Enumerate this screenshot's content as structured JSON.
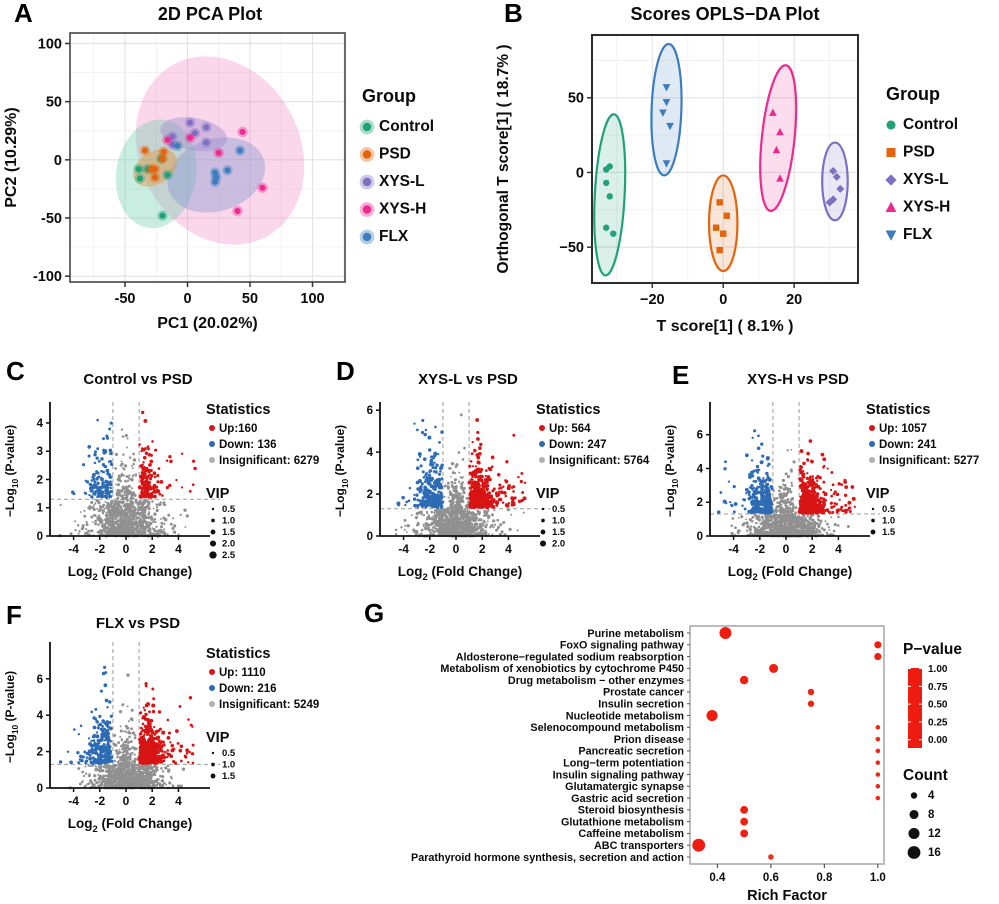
{
  "colors": {
    "groups": {
      "Control": "#1fa179",
      "PSD": "#e2650e",
      "XYS-L": "#7e6fc3",
      "XYS-H": "#ec2a90",
      "FLX": "#3d7dbf"
    },
    "up": "#d81414",
    "down": "#2d6cb5",
    "insignificant": "#909090",
    "legend_insig": "#b0b0b0",
    "axis": "#1a1a1a",
    "grid_major": "#e2e2e2",
    "grid_minor": "#f1f1f1",
    "dashed": "#9a9a9a",
    "panel_a_border": "#454545",
    "panel_b_border": "#2b2b2b",
    "panel_g_border": "#a6a6a6",
    "pvalue_gradient": [
      [
        0,
        "#ee1c10"
      ],
      [
        0.25,
        "#fb5d28"
      ],
      [
        0.4,
        "#f0b63e"
      ],
      [
        0.5,
        "#52d83e"
      ],
      [
        0.63,
        "#8cec7c"
      ],
      [
        0.75,
        "#45e5f2"
      ],
      [
        0.87,
        "#86b9f2"
      ],
      [
        1,
        "#a95ae4"
      ]
    ]
  },
  "chart_data": [
    {
      "panel": "A",
      "type": "scatter",
      "title": "2D PCA Plot",
      "xlabel": "PC1 (20.02%)",
      "ylabel": "PC2 (10.29%)",
      "xlim": [
        -94,
        126
      ],
      "ylim": [
        -105,
        109
      ],
      "xticks": [
        -50,
        0,
        50,
        100
      ],
      "xtick_labels": [
        "-50",
        "0",
        "50",
        "100"
      ],
      "yticks": [
        -100,
        -50,
        0,
        50,
        100
      ],
      "ytick_labels": [
        "-100",
        "-50",
        "0",
        "50",
        "100"
      ],
      "legend_title": "Group",
      "marker_style": "halo",
      "series": [
        {
          "name": "Control",
          "marker": "circle",
          "points": [
            [
              -39,
              -8
            ],
            [
              -32,
              -8
            ],
            [
              -38,
              -16
            ],
            [
              -21,
              1
            ],
            [
              -16,
              -13
            ],
            [
              -20,
              -48
            ]
          ]
        },
        {
          "name": "PSD",
          "marker": "circle",
          "points": [
            [
              -34,
              8
            ],
            [
              -19,
              7
            ],
            [
              -20,
              1
            ],
            [
              -29,
              -8
            ],
            [
              -26,
              -8
            ],
            [
              -26,
              -15
            ]
          ]
        },
        {
          "name": "XYS-L",
          "marker": "circle",
          "points": [
            [
              2,
              32
            ],
            [
              15,
              28
            ],
            [
              6,
              23
            ],
            [
              -12,
              20
            ],
            [
              -12,
              13
            ],
            [
              15,
              15
            ]
          ]
        },
        {
          "name": "XYS-H",
          "marker": "circle",
          "points": [
            [
              2,
              19
            ],
            [
              44,
              24
            ],
            [
              25,
              6
            ],
            [
              60,
              -24
            ],
            [
              40,
              -44
            ],
            [
              -16,
              17
            ]
          ]
        },
        {
          "name": "FLX",
          "marker": "circle",
          "points": [
            [
              -8,
              12
            ],
            [
              42,
              8
            ],
            [
              32,
              -9
            ],
            [
              22,
              -11
            ],
            [
              23,
              -15
            ],
            [
              22,
              -19
            ]
          ]
        }
      ],
      "ellipses": [
        {
          "group": "XYS-H",
          "cx": 26,
          "cy": 8,
          "rx": 64,
          "ry": 84,
          "rot": -28,
          "fill": "#f26db6",
          "opacity": 0.27
        },
        {
          "group": "Control",
          "cx": -25,
          "cy": -12,
          "rx": 32,
          "ry": 47,
          "rot": 9,
          "fill": "#5fc9a5",
          "opacity": 0.33
        },
        {
          "group": "FLX",
          "cx": 23,
          "cy": -13,
          "rx": 40,
          "ry": 31,
          "rot": -18,
          "fill": "#7e93cf",
          "opacity": 0.38
        },
        {
          "group": "XYS-L",
          "cx": 5,
          "cy": 22,
          "rx": 27,
          "ry": 14,
          "rot": 10,
          "fill": "#9a8bd0",
          "opacity": 0.42
        },
        {
          "group": "PSD",
          "cx": -26,
          "cy": -7,
          "rx": 19,
          "ry": 14,
          "rot": -32,
          "fill": "#e09a3c",
          "opacity": 0.45
        }
      ]
    },
    {
      "panel": "B",
      "type": "scatter",
      "title": "Scores OPLS−DA Plot",
      "xlabel": "T score[1] ( 8.1% )",
      "ylabel": "Orthogonal T score[1] ( 18.7% )",
      "xlim": [
        -37,
        38
      ],
      "ylim": [
        -74,
        92
      ],
      "xticks": [
        -20,
        0,
        20
      ],
      "xtick_labels": [
        "−20",
        "0",
        "20"
      ],
      "yticks": [
        -50,
        0,
        50
      ],
      "ytick_labels": [
        "−50",
        "0",
        "50"
      ],
      "legend_title": "Group",
      "marker_style": "shape",
      "series": [
        {
          "name": "Control",
          "marker": "circle",
          "points": [
            [
              -33,
              2
            ],
            [
              -32,
              4
            ],
            [
              -33,
              -7
            ],
            [
              -32,
              -16
            ],
            [
              -33,
              -37
            ],
            [
              -31,
              -41
            ]
          ]
        },
        {
          "name": "PSD",
          "marker": "square",
          "points": [
            [
              -1,
              -20
            ],
            [
              1,
              -29
            ],
            [
              -2,
              -37
            ],
            [
              0,
              -41
            ],
            [
              -1,
              -52
            ]
          ]
        },
        {
          "name": "XYS-L",
          "marker": "diamond",
          "points": [
            [
              31,
              1
            ],
            [
              32,
              -3
            ],
            [
              33,
              -11
            ],
            [
              31,
              -18
            ],
            [
              30,
              -20
            ]
          ]
        },
        {
          "name": "XYS-H",
          "marker": "triangle-up",
          "points": [
            [
              14,
              40
            ],
            [
              16,
              27
            ],
            [
              15,
              15
            ],
            [
              16,
              -4
            ]
          ]
        },
        {
          "name": "FLX",
          "marker": "triangle-down",
          "points": [
            [
              -16,
              57
            ],
            [
              -16,
              47
            ],
            [
              -17,
              40
            ],
            [
              -15,
              31
            ],
            [
              -16,
              6
            ]
          ]
        }
      ],
      "ellipses": [
        {
          "group": "Control",
          "cx": -32,
          "cy": -15,
          "rx": 4.2,
          "ry": 54,
          "rot": 3
        },
        {
          "group": "FLX",
          "cx": -16,
          "cy": 42,
          "rx": 4.2,
          "ry": 44,
          "rot": 2
        },
        {
          "group": "PSD",
          "cx": 0,
          "cy": -34,
          "rx": 4,
          "ry": 32,
          "rot": 0
        },
        {
          "group": "XYS-H",
          "cx": 15.5,
          "cy": 23,
          "rx": 4.6,
          "ry": 49,
          "rot": 6
        },
        {
          "group": "XYS-L",
          "cx": 31.5,
          "cy": -6,
          "rx": 3.6,
          "ry": 26,
          "rot": 0
        }
      ]
    },
    {
      "panel": "C",
      "type": "volcano",
      "title": "Control vs PSD",
      "xlabel": "Log_{2} (Fold Change)",
      "ylabel": "−Log_{10} (P-value)",
      "xlim": [
        -5.8,
        5.8
      ],
      "xticks": [
        -4,
        -2,
        0,
        2,
        4
      ],
      "xtick_labels": [
        "-4",
        "-2",
        "0",
        "2",
        "4"
      ],
      "ylim": [
        0,
        4.6
      ],
      "yticks": [
        0,
        1,
        2,
        3,
        4
      ],
      "ytick_labels": [
        "0",
        "1",
        "2",
        "3",
        "4"
      ],
      "thresholds": {
        "x": 1,
        "y": 1.3
      },
      "seed": 7,
      "stats_title": "Statistics",
      "stats": [
        {
          "key": "up",
          "label": "Up:160",
          "count": 160
        },
        {
          "key": "down",
          "label": "Down: 136",
          "count": 136
        },
        {
          "key": "insignificant",
          "label": "Insignificant: 6279",
          "count": 6279
        }
      ],
      "vip_title": "VIP",
      "vip": [
        "0.5",
        "1.0",
        "1.5",
        "2.0",
        "2.5"
      ]
    },
    {
      "panel": "D",
      "type": "volcano",
      "title": "XYS-L vs PSD",
      "xlabel": "Log_{2} (Fold Change)",
      "ylabel": "−Log_{10} (P-value)",
      "xlim": [
        -5.8,
        5.8
      ],
      "xticks": [
        -4,
        -2,
        0,
        2,
        4
      ],
      "xtick_labels": [
        "-4",
        "-2",
        "0",
        "2",
        "4"
      ],
      "ylim": [
        0,
        6.2
      ],
      "yticks": [
        0,
        2,
        4,
        6
      ],
      "ytick_labels": [
        "0",
        "2",
        "4",
        "6"
      ],
      "thresholds": {
        "x": 1,
        "y": 1.3
      },
      "seed": 11,
      "stats_title": "Statistics",
      "stats": [
        {
          "key": "up",
          "label": "Up: 564",
          "count": 564
        },
        {
          "key": "down",
          "label": "Down: 247",
          "count": 247
        },
        {
          "key": "insignificant",
          "label": "Insignificant: 5764",
          "count": 5764
        }
      ],
      "vip_title": "VIP",
      "vip": [
        "0.5",
        "1.0",
        "1.5",
        "2.0"
      ]
    },
    {
      "panel": "E",
      "type": "volcano",
      "title": "XYS-H vs PSD",
      "xlabel": "Log_{2} (Fold Change)",
      "ylabel": "−Log_{10} (P-value)",
      "xlim": [
        -5.8,
        5.8
      ],
      "xticks": [
        -4,
        -2,
        0,
        2,
        4
      ],
      "xtick_labels": [
        "-4",
        "-2",
        "0",
        "2",
        "4"
      ],
      "ylim": [
        0,
        7.7
      ],
      "yticks": [
        0,
        2,
        4,
        6
      ],
      "ytick_labels": [
        "0",
        "2",
        "4",
        "6"
      ],
      "thresholds": {
        "x": 1,
        "y": 1.3
      },
      "seed": 13,
      "stats_title": "Statistics",
      "stats": [
        {
          "key": "up",
          "label": "Up: 1057",
          "count": 1057
        },
        {
          "key": "down",
          "label": "Down: 241",
          "count": 241
        },
        {
          "key": "insignificant",
          "label": "Insignificant: 5277",
          "count": 5277
        }
      ],
      "vip_title": "VIP",
      "vip": [
        "0.5",
        "1.0",
        "1.5"
      ]
    },
    {
      "panel": "F",
      "type": "volcano",
      "title": "FLX vs PSD",
      "xlabel": "Log_{2} (Fold Change)",
      "ylabel": "−Log_{10} (P-value)",
      "xlim": [
        -5.8,
        5.8
      ],
      "xticks": [
        -4,
        -2,
        0,
        2,
        4
      ],
      "xtick_labels": [
        "-4",
        "-2",
        "0",
        "2",
        "4"
      ],
      "ylim": [
        0,
        7.8
      ],
      "yticks": [
        0,
        2,
        4,
        6
      ],
      "ytick_labels": [
        "0",
        "2",
        "4",
        "6"
      ],
      "thresholds": {
        "x": 1,
        "y": 1.3
      },
      "seed": 17,
      "stats_title": "Statistics",
      "stats": [
        {
          "key": "up",
          "label": "Up: 1110",
          "count": 1110
        },
        {
          "key": "down",
          "label": "Down: 216",
          "count": 216
        },
        {
          "key": "insignificant",
          "label": "Insignificant: 5249",
          "count": 5249
        }
      ],
      "vip_title": "VIP",
      "vip": [
        "0.5",
        "1.0",
        "1.5"
      ]
    },
    {
      "panel": "G",
      "type": "dotplot",
      "xlabel": "Rich Factor",
      "xlim": [
        0.2975,
        1.023
      ],
      "xticks": [
        0.4,
        0.6,
        0.8,
        1.0
      ],
      "xtick_labels": [
        "0.4",
        "0.6",
        "0.8",
        "1.0"
      ],
      "legend": {
        "pvalue_title": "P−value",
        "colorbar_ticks": [
          "1.00",
          "0.75",
          "0.50",
          "0.25",
          "0.00"
        ],
        "count_title": "Count",
        "count_sizes": [
          4,
          8,
          12,
          16
        ]
      },
      "pathways": [
        {
          "name": "Purine metabolism",
          "rich_factor": 0.43,
          "count": 14,
          "pvalue": 0.002
        },
        {
          "name": "FoxO signaling pathway",
          "rich_factor": 1.0,
          "count": 5,
          "pvalue": 0.01
        },
        {
          "name": "Aldosterone−regulated sodium reabsorption",
          "rich_factor": 1.0,
          "count": 5,
          "pvalue": 0.012
        },
        {
          "name": "Metabolism of xenobiotics by cytochrome P450",
          "rich_factor": 0.61,
          "count": 8,
          "pvalue": 0.02
        },
        {
          "name": "Drug metabolism − other enzymes",
          "rich_factor": 0.5,
          "count": 7,
          "pvalue": 0.02
        },
        {
          "name": "Prostate cancer",
          "rich_factor": 0.75,
          "count": 4,
          "pvalue": 0.03
        },
        {
          "name": "Insulin secretion",
          "rich_factor": 0.75,
          "count": 4,
          "pvalue": 0.03
        },
        {
          "name": "Nucleotide metabolism",
          "rich_factor": 0.38,
          "count": 12,
          "pvalue": 0.004
        },
        {
          "name": "Selenocompound metabolism",
          "rich_factor": 1.0,
          "count": 2,
          "pvalue": 0.04
        },
        {
          "name": "Prion disease",
          "rich_factor": 1.0,
          "count": 2,
          "pvalue": 0.04
        },
        {
          "name": "Pancreatic secretion",
          "rich_factor": 1.0,
          "count": 2,
          "pvalue": 0.04
        },
        {
          "name": "Long−term potentiation",
          "rich_factor": 1.0,
          "count": 2,
          "pvalue": 0.04
        },
        {
          "name": "Insulin signaling pathway",
          "rich_factor": 1.0,
          "count": 2,
          "pvalue": 0.04
        },
        {
          "name": "Glutamatergic synapse",
          "rich_factor": 1.0,
          "count": 2,
          "pvalue": 0.04
        },
        {
          "name": "Gastric acid secretion",
          "rich_factor": 1.0,
          "count": 2,
          "pvalue": 0.04
        },
        {
          "name": "Steroid biosynthesis",
          "rich_factor": 0.5,
          "count": 6,
          "pvalue": 0.02
        },
        {
          "name": "Glutathione metabolism",
          "rich_factor": 0.5,
          "count": 6,
          "pvalue": 0.02
        },
        {
          "name": "Caffeine metabolism",
          "rich_factor": 0.5,
          "count": 6,
          "pvalue": 0.02
        },
        {
          "name": "ABC transporters",
          "rich_factor": 0.33,
          "count": 16,
          "pvalue": 0.001
        },
        {
          "name": "Parathyroid hormone synthesis, secretion and action",
          "rich_factor": 0.6,
          "count": 3,
          "pvalue": 0.08
        }
      ]
    }
  ]
}
